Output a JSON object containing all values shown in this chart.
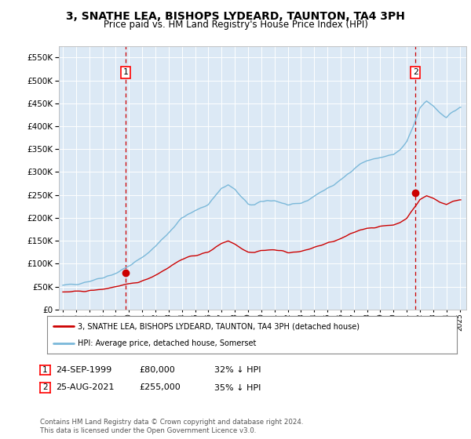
{
  "title": "3, SNATHE LEA, BISHOPS LYDEARD, TAUNTON, TA4 3PH",
  "subtitle": "Price paid vs. HM Land Registry's House Price Index (HPI)",
  "sale1_date_num": 1999.73,
  "sale1_price": 80000,
  "sale2_date_num": 2021.65,
  "sale2_price": 255000,
  "ylim_min": 0,
  "ylim_max": 575000,
  "xlim_min": 1994.7,
  "xlim_max": 2025.5,
  "legend_line1": "3, SNATHE LEA, BISHOPS LYDEARD, TAUNTON, TA4 3PH (detached house)",
  "legend_line2": "HPI: Average price, detached house, Somerset",
  "note1_label": "1",
  "note1_date": "24-SEP-1999",
  "note1_price": "£80,000",
  "note1_hpi": "32% ↓ HPI",
  "note2_label": "2",
  "note2_date": "25-AUG-2021",
  "note2_price": "£255,000",
  "note2_hpi": "35% ↓ HPI",
  "footer": "Contains HM Land Registry data © Crown copyright and database right 2024.\nThis data is licensed under the Open Government Licence v3.0.",
  "red_color": "#cc0000",
  "blue_color": "#7ab8d9",
  "plot_bg_color": "#dce9f5"
}
